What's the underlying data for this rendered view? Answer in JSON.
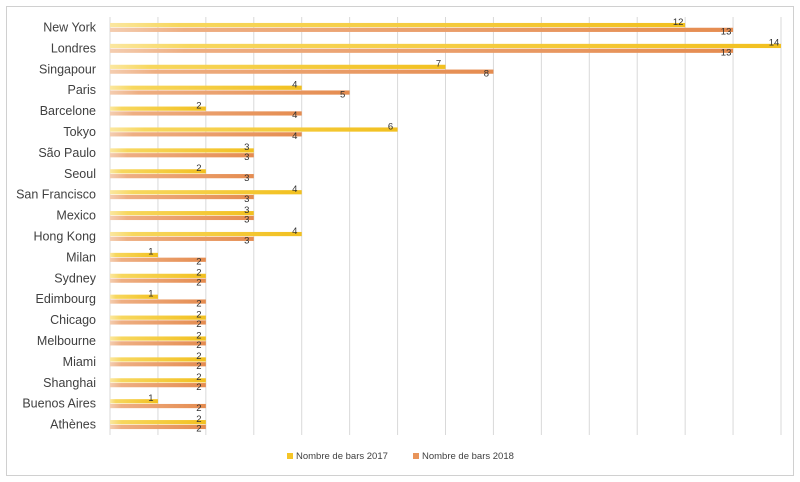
{
  "chart_data": {
    "type": "bar",
    "orientation": "horizontal",
    "categories": [
      "New York",
      "Londres",
      "Singapour",
      "Paris",
      "Barcelone",
      "Tokyo",
      "São Paulo",
      "Seoul",
      "San Francisco",
      "Mexico",
      "Hong Kong",
      "Milan",
      "Sydney",
      "Edimbourg",
      "Chicago",
      "Melbourne",
      "Miami",
      "Shanghai",
      "Buenos Aires",
      "Athènes"
    ],
    "series": [
      {
        "name": "Nombre de bars 2017",
        "color": "#f5c527",
        "values": [
          12,
          14,
          7,
          4,
          2,
          6,
          3,
          2,
          4,
          3,
          4,
          1,
          2,
          1,
          2,
          2,
          2,
          2,
          1,
          2
        ]
      },
      {
        "name": "Nombre de bars 2018",
        "color": "#e8945a",
        "values": [
          13,
          13,
          8,
          5,
          4,
          4,
          3,
          3,
          3,
          3,
          3,
          2,
          2,
          2,
          2,
          2,
          2,
          2,
          2,
          2
        ]
      }
    ],
    "xlim": [
      0,
      14
    ],
    "grid": "vertical",
    "legend_position": "bottom"
  }
}
